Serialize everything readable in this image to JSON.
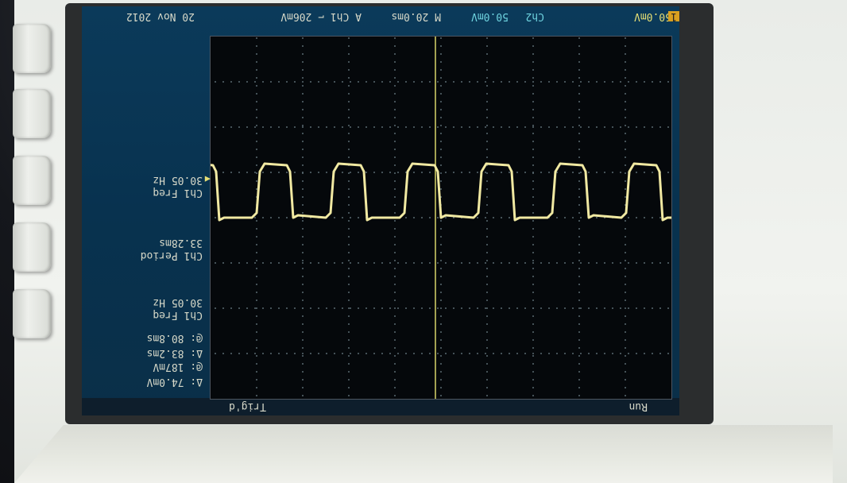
{
  "scope": {
    "date": "20 Nov 2012",
    "ch1_scale": "50.0mV",
    "ch2_scale": "50.0mV",
    "ch2_label": "Ch2",
    "timebase": "M 20.0ms",
    "trigger_info": "A  Ch1  ⌐  206mV",
    "status": "Run",
    "trig_status": "Trig'd",
    "measurements": [
      {
        "label": "Ch1 Freq",
        "value": "30.05 Hz"
      },
      {
        "label": "Ch1 Period",
        "value": "33.28ms"
      },
      {
        "label": "Ch1 Freq",
        "value": "30.05 Hz"
      }
    ],
    "cursors": [
      {
        "symbol": "Δ:",
        "value": "74.0mV"
      },
      {
        "symbol": "@:",
        "value": "187mV"
      },
      {
        "symbol": "Δ:",
        "value": "83.2ms"
      },
      {
        "symbol": "@:",
        "value": "80.8ms"
      }
    ],
    "channel_marker": "1",
    "colors": {
      "trace": "#f1e9a2",
      "screen_bg": "#0b3a5a",
      "plot_bg": "#05080b",
      "grid": "#5a6a72",
      "cursor": "#d9d66a"
    }
  }
}
